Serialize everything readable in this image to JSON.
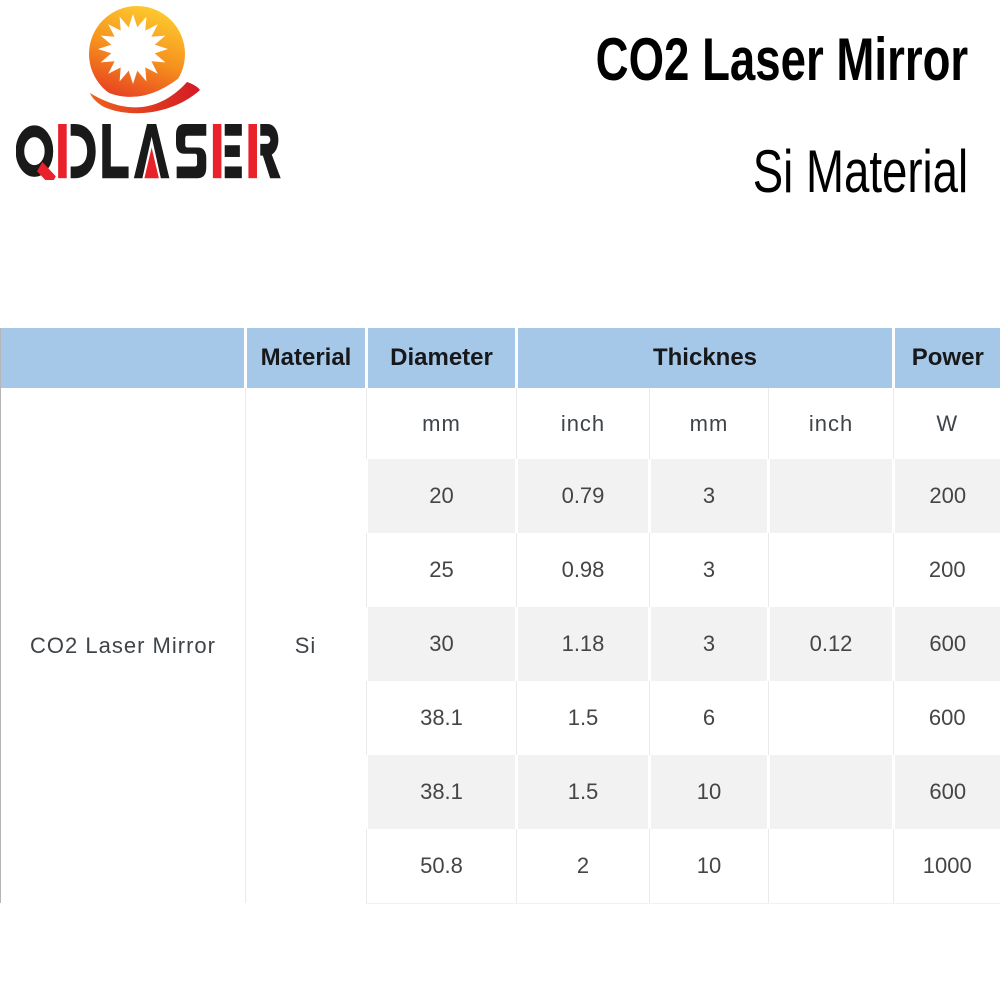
{
  "brand": {
    "name": "QDLASER"
  },
  "header": {
    "title": "CO2 Laser Mirror",
    "subtitle": "Si Material"
  },
  "table": {
    "product": "CO2 Laser Mirror",
    "material": "Si",
    "col_headers": {
      "blank": "",
      "material": "Material",
      "diameter": "Diameter",
      "thickness": "Thicknes",
      "power": "Power"
    },
    "units": [
      "mm",
      "inch",
      "mm",
      "inch",
      "W"
    ],
    "rows": [
      [
        "20",
        "0.79",
        "3",
        "",
        "200"
      ],
      [
        "25",
        "0.98",
        "3",
        "",
        "200"
      ],
      [
        "30",
        "1.18",
        "3",
        "0.12",
        "600"
      ],
      [
        "38.1",
        "1.5",
        "6",
        "",
        "600"
      ],
      [
        "38.1",
        "1.5",
        "10",
        "",
        "600"
      ],
      [
        "50.8",
        "2",
        "10",
        "",
        "1000"
      ]
    ]
  },
  "colors": {
    "header_bg": "#a5c8e8",
    "stripe_bg": "#f2f2f2",
    "brand_red": "#e8212b",
    "brand_black": "#1a1a1a",
    "logo_yellow": "#fdca2e",
    "logo_orange": "#f6921e",
    "logo_red": "#e63a20"
  }
}
